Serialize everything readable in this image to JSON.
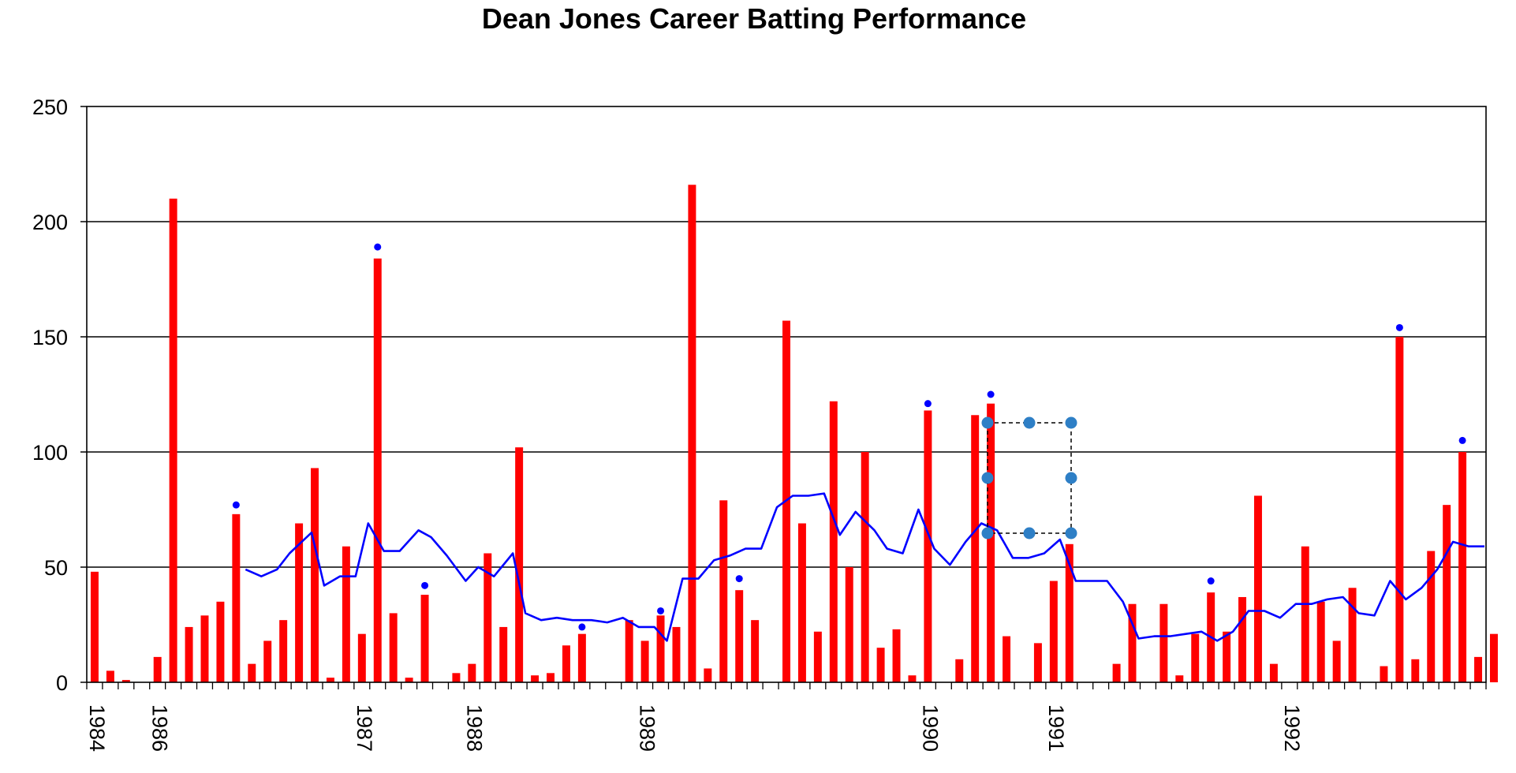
{
  "chart_data": {
    "type": "bar",
    "title": "Dean Jones Career Batting Performance",
    "ylim": [
      0,
      250
    ],
    "yticks": [
      0,
      50,
      100,
      150,
      200,
      250
    ],
    "grid": true,
    "colors": {
      "bars": "#ff0000",
      "average": "#0000ff",
      "not_out": "#0000ff",
      "grid": "#000000"
    },
    "innings_count": 88,
    "x_labels": [
      {
        "label": "1984",
        "innings": 0
      },
      {
        "label": "1986",
        "innings": 4
      },
      {
        "label": "1987",
        "innings": 17
      },
      {
        "label": "1988",
        "innings": 24
      },
      {
        "label": "1989",
        "innings": 35
      },
      {
        "label": "1990",
        "innings": 53
      },
      {
        "label": "1991",
        "innings": 61
      },
      {
        "label": "1992",
        "innings": 76
      }
    ],
    "series": [
      {
        "kind": "bar",
        "values": [
          [
            0,
            48
          ],
          [
            1,
            5
          ],
          [
            2,
            1
          ],
          [
            4,
            11
          ],
          [
            5,
            210
          ],
          [
            6,
            24
          ],
          [
            7,
            29
          ],
          [
            8,
            35
          ],
          [
            9,
            73
          ],
          [
            10,
            8
          ],
          [
            11,
            18
          ],
          [
            12,
            27
          ],
          [
            13,
            69
          ],
          [
            14,
            93
          ],
          [
            15,
            2
          ],
          [
            16,
            59
          ],
          [
            17,
            21
          ],
          [
            18,
            184
          ],
          [
            19,
            30
          ],
          [
            20,
            2
          ],
          [
            21,
            38
          ],
          [
            23,
            4
          ],
          [
            24,
            8
          ],
          [
            25,
            56
          ],
          [
            26,
            24
          ],
          [
            27,
            102
          ],
          [
            28,
            3
          ],
          [
            29,
            4
          ],
          [
            30,
            16
          ],
          [
            31,
            21
          ],
          [
            34,
            27
          ],
          [
            35,
            18
          ],
          [
            36,
            29
          ],
          [
            37,
            24
          ],
          [
            38,
            216
          ],
          [
            39,
            6
          ],
          [
            40,
            79
          ],
          [
            41,
            40
          ],
          [
            42,
            27
          ],
          [
            44,
            157
          ],
          [
            45,
            69
          ],
          [
            46,
            22
          ],
          [
            47,
            122
          ],
          [
            48,
            50
          ],
          [
            49,
            100
          ],
          [
            50,
            15
          ],
          [
            51,
            23
          ],
          [
            52,
            3
          ],
          [
            53,
            118
          ],
          [
            55,
            10
          ],
          [
            56,
            116
          ],
          [
            57,
            121
          ],
          [
            58,
            20
          ],
          [
            60,
            17
          ],
          [
            61,
            44
          ],
          [
            62,
            60
          ],
          [
            65,
            8
          ],
          [
            66,
            34
          ],
          [
            68,
            34
          ],
          [
            69,
            3
          ],
          [
            70,
            21
          ],
          [
            71,
            39
          ],
          [
            72,
            22
          ],
          [
            73,
            37
          ],
          [
            74,
            81
          ],
          [
            75,
            8
          ],
          [
            77,
            59
          ],
          [
            78,
            35
          ],
          [
            79,
            18
          ],
          [
            80,
            41
          ],
          [
            82,
            7
          ],
          [
            83,
            150
          ],
          [
            84,
            10
          ],
          [
            85,
            57
          ],
          [
            86,
            77
          ],
          [
            87,
            100
          ],
          [
            88,
            11
          ],
          [
            89,
            21
          ]
        ]
      },
      {
        "kind": "not_out",
        "values": [
          [
            9,
            77
          ],
          [
            18,
            189
          ],
          [
            21,
            42
          ],
          [
            31,
            24
          ],
          [
            36,
            31
          ],
          [
            41,
            45
          ],
          [
            53,
            121
          ],
          [
            57,
            125
          ],
          [
            71,
            44
          ],
          [
            83,
            154
          ],
          [
            87,
            105
          ]
        ]
      },
      {
        "kind": "line",
        "values": [
          [
            9.6,
            49
          ],
          [
            10.6,
            46
          ],
          [
            11.6,
            49
          ],
          [
            12.4,
            56
          ],
          [
            13.8,
            65
          ],
          [
            14.6,
            42
          ],
          [
            15.6,
            46
          ],
          [
            16.6,
            46
          ],
          [
            17.4,
            69
          ],
          [
            18.4,
            57
          ],
          [
            19.4,
            57
          ],
          [
            20.6,
            66
          ],
          [
            21.4,
            63
          ],
          [
            22.4,
            55
          ],
          [
            23.6,
            44
          ],
          [
            24.4,
            50
          ],
          [
            25.4,
            46
          ],
          [
            26.6,
            56
          ],
          [
            27.4,
            30
          ],
          [
            28.4,
            27
          ],
          [
            29.4,
            28
          ],
          [
            30.4,
            27
          ],
          [
            31.6,
            27
          ],
          [
            32.6,
            26
          ],
          [
            33.6,
            28
          ],
          [
            34.6,
            24
          ],
          [
            35.6,
            24
          ],
          [
            36.4,
            18
          ],
          [
            37.4,
            45
          ],
          [
            38.4,
            45
          ],
          [
            39.4,
            53
          ],
          [
            40.4,
            55
          ],
          [
            41.4,
            58
          ],
          [
            42.4,
            58
          ],
          [
            43.4,
            76
          ],
          [
            44.4,
            81
          ],
          [
            45.4,
            81
          ],
          [
            46.4,
            82
          ],
          [
            47.4,
            64
          ],
          [
            48.4,
            74
          ],
          [
            49.6,
            66
          ],
          [
            50.4,
            58
          ],
          [
            51.4,
            56
          ],
          [
            52.4,
            75
          ],
          [
            53.4,
            58
          ],
          [
            54.4,
            51
          ],
          [
            55.4,
            61
          ],
          [
            56.4,
            69
          ],
          [
            57.4,
            66
          ],
          [
            58.4,
            54
          ],
          [
            59.4,
            54
          ],
          [
            60.4,
            56
          ],
          [
            61.4,
            62
          ],
          [
            62.4,
            44
          ],
          [
            63.4,
            44
          ],
          [
            64.4,
            44
          ],
          [
            65.4,
            35
          ],
          [
            66.4,
            19
          ],
          [
            67.4,
            20
          ],
          [
            68.4,
            20
          ],
          [
            69.4,
            21
          ],
          [
            70.4,
            22
          ],
          [
            71.4,
            18
          ],
          [
            72.4,
            22
          ],
          [
            73.4,
            31
          ],
          [
            74.4,
            31
          ],
          [
            75.4,
            28
          ],
          [
            76.4,
            34
          ],
          [
            77.4,
            34
          ],
          [
            78.4,
            36
          ],
          [
            79.4,
            37
          ],
          [
            80.4,
            30
          ],
          [
            81.4,
            29
          ],
          [
            82.4,
            44
          ],
          [
            83.4,
            36
          ],
          [
            84.4,
            41
          ],
          [
            85.4,
            49
          ],
          [
            86.4,
            61
          ],
          [
            87.4,
            59
          ],
          [
            88.4,
            59
          ]
        ]
      }
    ]
  }
}
